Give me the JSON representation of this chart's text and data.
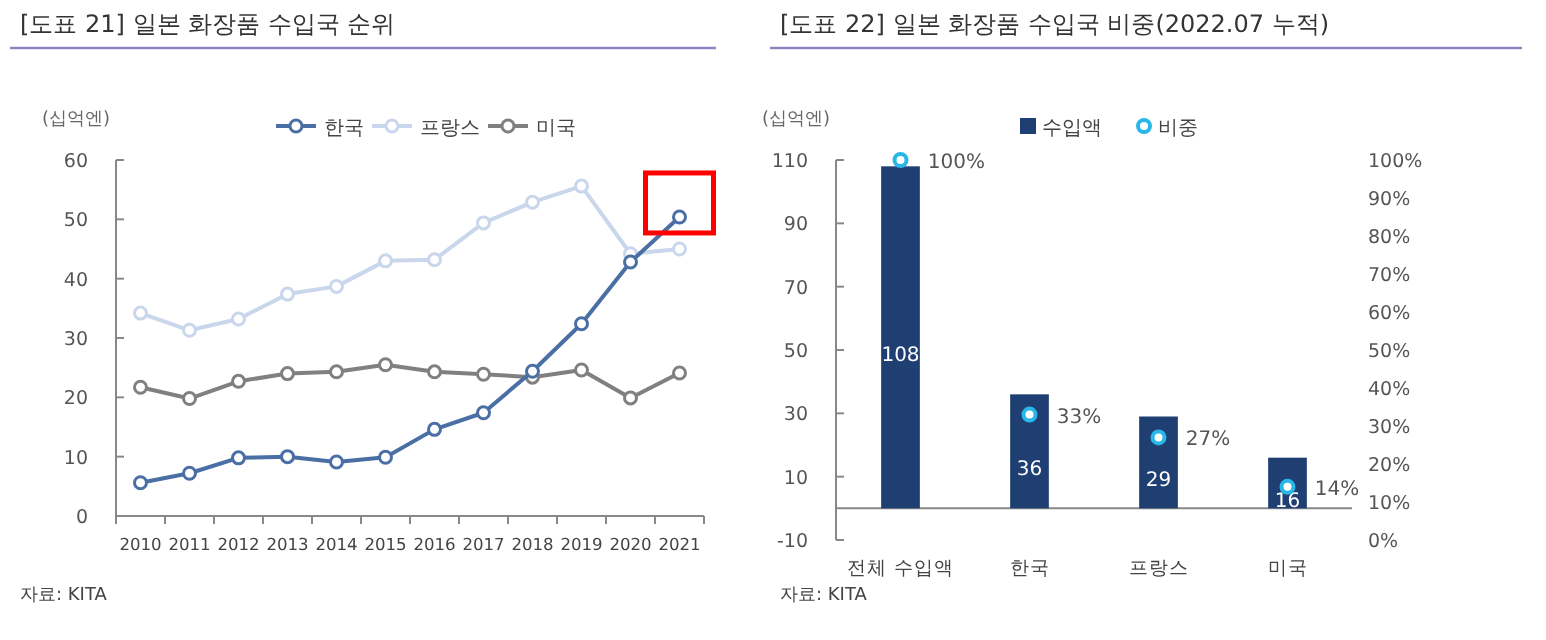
{
  "chart_data": [
    {
      "type": "line",
      "title": "[도표 21] 일본 화장품 수입국 순위",
      "ylabel": "(십억엔)",
      "categories": [
        "2010",
        "2011",
        "2012",
        "2013",
        "2014",
        "2015",
        "2016",
        "2017",
        "2018",
        "2019",
        "2020",
        "2021"
      ],
      "ylim": [
        0,
        60
      ],
      "yticks": [
        0,
        10,
        20,
        30,
        40,
        50,
        60
      ],
      "legend": "top",
      "marker": "circle",
      "annotations": [
        "자료: KITA"
      ],
      "series": [
        {
          "name": "한국",
          "color": "#4a6fa5",
          "values": [
            5.6,
            7.2,
            9.8,
            10,
            9.1,
            9.9,
            14.6,
            17.4,
            24.4,
            32.4,
            42.8,
            50.4
          ]
        },
        {
          "name": "프랑스",
          "color": "#c9d6ec",
          "values": [
            34.2,
            31.3,
            33.2,
            37.4,
            38.7,
            43,
            43.2,
            49.4,
            52.9,
            55.6,
            44.2,
            45
          ]
        },
        {
          "name": "미국",
          "color": "#808080",
          "values": [
            21.7,
            19.8,
            22.7,
            24,
            24.3,
            25.5,
            24.3,
            23.9,
            23.4,
            24.6,
            19.9,
            24.1
          ]
        }
      ]
    },
    {
      "type": "bar",
      "title": "[도표 22] 일본 화장품 수입국 비중(2022.07 누적)",
      "ylabel": "(십억엔)",
      "categories": [
        "전체 수입액",
        "한국",
        "프랑스",
        "미국"
      ],
      "ylim": [
        -10,
        110
      ],
      "yticks": [
        -10,
        10,
        30,
        50,
        70,
        90,
        110
      ],
      "y2lim": [
        0,
        100
      ],
      "y2ticks": [
        {
          "value": 0,
          "label": "0%"
        },
        {
          "value": 10,
          "label": "10%"
        },
        {
          "value": 20,
          "label": "20%"
        },
        {
          "value": 30,
          "label": "30%"
        },
        {
          "value": 40,
          "label": "40%"
        },
        {
          "value": 50,
          "label": "50%"
        },
        {
          "value": 60,
          "label": "60%"
        },
        {
          "value": 70,
          "label": "70%"
        },
        {
          "value": 80,
          "label": "80%"
        },
        {
          "value": 90,
          "label": "90%"
        },
        {
          "value": 100,
          "label": "100%"
        }
      ],
      "legend": "top",
      "marker": "circle",
      "annotations": [
        "자료: KITA"
      ],
      "series": [
        {
          "name": "수입액",
          "color": "#1f3f73",
          "values": [
            108,
            36,
            29,
            16
          ],
          "value_labels": [
            "108",
            "36",
            "29",
            "16"
          ]
        },
        {
          "name": "비중",
          "type": "scatter",
          "axis": "y2",
          "color": "#29b6e8",
          "values": [
            100,
            33,
            27,
            14
          ],
          "value_labels": [
            "100%",
            "33%",
            "27%",
            "14%"
          ]
        }
      ]
    }
  ]
}
